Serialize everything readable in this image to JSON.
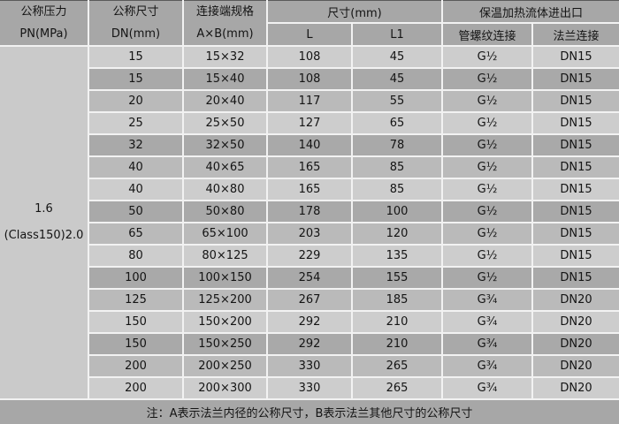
{
  "table": {
    "header": {
      "pressure_line1": "公称压力",
      "pressure_line2": "PN(MPa)",
      "dn_line1": "公称尺寸",
      "dn_line2": "DN(mm)",
      "axb_line1": "连接端规格",
      "axb_line2": "A×B(mm)",
      "dims_group": "尺寸(mm)",
      "l": "L",
      "l1": "L1",
      "ports_group": "保温加热流体进出口",
      "thread": "管螺纹连接",
      "flange": "法兰连接"
    },
    "pressure_cell": {
      "line1": "1.6",
      "line2": "(Class150)2.0"
    },
    "rows": [
      [
        "15",
        "15×32",
        "108",
        "45",
        "G½",
        "DN15"
      ],
      [
        "15",
        "15×40",
        "108",
        "45",
        "G½",
        "DN15"
      ],
      [
        "20",
        "20×40",
        "117",
        "55",
        "G½",
        "DN15"
      ],
      [
        "25",
        "25×50",
        "127",
        "65",
        "G½",
        "DN15"
      ],
      [
        "32",
        "32×50",
        "140",
        "78",
        "G½",
        "DN15"
      ],
      [
        "40",
        "40×65",
        "165",
        "85",
        "G½",
        "DN15"
      ],
      [
        "40",
        "40×80",
        "165",
        "85",
        "G½",
        "DN15"
      ],
      [
        "50",
        "50×80",
        "178",
        "100",
        "G½",
        "DN15"
      ],
      [
        "65",
        "65×100",
        "203",
        "120",
        "G½",
        "DN15"
      ],
      [
        "80",
        "80×125",
        "229",
        "135",
        "G½",
        "DN15"
      ],
      [
        "100",
        "100×150",
        "254",
        "155",
        "G½",
        "DN15"
      ],
      [
        "125",
        "125×200",
        "267",
        "185",
        "G¾",
        "DN20"
      ],
      [
        "150",
        "150×200",
        "292",
        "210",
        "G¾",
        "DN20"
      ],
      [
        "150",
        "150×250",
        "292",
        "210",
        "G¾",
        "DN20"
      ],
      [
        "200",
        "200×250",
        "330",
        "265",
        "G¾",
        "DN20"
      ],
      [
        "200",
        "200×300",
        "330",
        "265",
        "G¾",
        "DN20"
      ]
    ],
    "note": "注：A表示法兰内径的公称尺寸，B表示法兰其他尺寸的公称尺寸"
  },
  "colors": {
    "header_bg": "#a7a7a7",
    "row_light": "#cdcdcd",
    "row_mid": "#bababa",
    "row_dark": "#a9a9a9",
    "pressure_cell_bg": "#cacaca",
    "grid_line": "#f2f2f2",
    "note_divider": "#242424",
    "text": "#141414"
  }
}
